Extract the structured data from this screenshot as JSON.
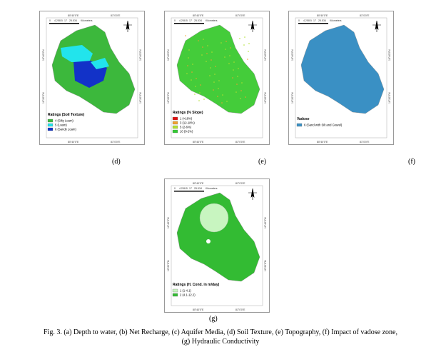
{
  "coords": {
    "lon": [
      "80°40'0\"E",
      "81°0'0\"E"
    ],
    "lat": [
      "16°40'0\"N",
      "16°20'0\"N"
    ]
  },
  "scale": {
    "ticks": [
      "0",
      "4.25",
      "8.5",
      "17",
      "25.5",
      "34"
    ],
    "unit": "Kilometers"
  },
  "panels": [
    {
      "label": "(d)",
      "legend_title": "Ratings (Soil Texture)",
      "items": [
        "4 (Silty Loam)",
        "5 (Loam)",
        "6 (Sandy Loam)"
      ]
    },
    {
      "label": "(e)",
      "legend_title": "Ratings (% Slope)",
      "items": [
        "1 (>18%)",
        "3 (12-18%)",
        "5 (2-6%)",
        "10 (0-2%)"
      ]
    },
    {
      "label": "(f)",
      "legend_title": "Vadose",
      "items": [
        "6 (Sand with Silt and Gravel)"
      ]
    },
    {
      "label": "(g)",
      "legend_title": "Ratings (H. Cond. in m/day)",
      "items": [
        "1 (1-4.1)",
        "2 (4.1-12.2)"
      ]
    }
  ],
  "caption": [
    "Fig. 3. (a) Depth to water, (b) Net Recharge, (c) Aquifer Media, (d) Soil Texture, (e) Topography, (f) Impact of vadose zone,",
    "(g) Hydraulic Conductivity"
  ]
}
